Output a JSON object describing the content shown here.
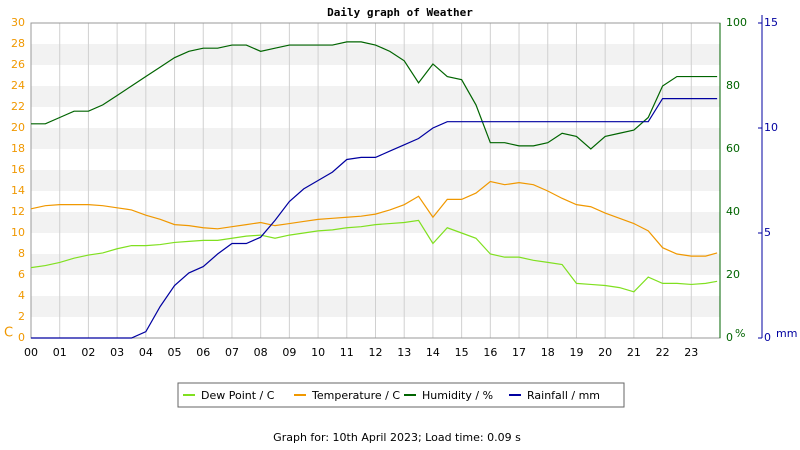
{
  "chart_data": {
    "type": "line",
    "title": "Daily graph of Weather",
    "note": "Graph for: 10th April 2023; Load time: 0.09 s",
    "y_label": "C",
    "y2_label": "%",
    "y3_label": "mm",
    "xlim": [
      0,
      24
    ],
    "xticks": [
      {
        "value": 0,
        "label": "00"
      },
      {
        "value": 1,
        "label": "01"
      },
      {
        "value": 2,
        "label": "02"
      },
      {
        "value": 3,
        "label": "03"
      },
      {
        "value": 4,
        "label": "04"
      },
      {
        "value": 5,
        "label": "05"
      },
      {
        "value": 6,
        "label": "06"
      },
      {
        "value": 7,
        "label": "07"
      },
      {
        "value": 8,
        "label": "08"
      },
      {
        "value": 9,
        "label": "09"
      },
      10,
      11,
      12,
      13,
      14,
      15,
      16,
      17,
      18,
      19,
      20,
      21,
      22,
      23
    ],
    "ylim": [
      0,
      30
    ],
    "yticks": [
      0,
      2,
      4,
      6,
      8,
      10,
      12,
      14,
      16,
      18,
      20,
      22,
      24,
      26,
      28,
      30
    ],
    "y2lim": [
      0,
      100
    ],
    "y2ticks": [
      0,
      20,
      40,
      60,
      80,
      100
    ],
    "y3lim": [
      0,
      15
    ],
    "y3ticks": [
      0,
      5,
      10,
      15
    ],
    "grid": true,
    "x": [
      0,
      0.5,
      1,
      1.5,
      2,
      2.5,
      3,
      3.5,
      4,
      4.5,
      5,
      5.5,
      6,
      6.5,
      7,
      7.5,
      8,
      8.5,
      9,
      9.5,
      10,
      10.5,
      11,
      11.5,
      12,
      12.5,
      13,
      13.5,
      14,
      14.5,
      15,
      15.5,
      16,
      16.5,
      17,
      17.5,
      18,
      18.5,
      19,
      19.5,
      20,
      20.5,
      21,
      21.5,
      22,
      22.5,
      23,
      23.5,
      23.9
    ],
    "series": [
      {
        "name": "Dew Point / C",
        "color": "#80e020",
        "values": [
          6.7,
          6.9,
          7.2,
          7.6,
          7.9,
          8.1,
          8.5,
          8.8,
          8.8,
          8.9,
          9.1,
          9.2,
          9.3,
          9.3,
          9.5,
          9.7,
          9.8,
          9.5,
          9.8,
          10.0,
          10.2,
          10.3,
          10.5,
          10.6,
          10.8,
          10.9,
          11.0,
          11.2,
          9.0,
          10.5,
          10.0,
          9.5,
          8.0,
          7.7,
          7.7,
          7.4,
          7.2,
          7.0,
          5.2,
          5.1,
          5.0,
          4.8,
          4.4,
          5.8,
          5.2,
          5.2,
          5.1,
          5.2,
          5.4
        ]
      },
      {
        "name": "Temperature / C",
        "color": "#f09800",
        "values": [
          12.3,
          12.6,
          12.7,
          12.7,
          12.7,
          12.6,
          12.4,
          12.2,
          11.7,
          11.3,
          10.8,
          10.7,
          10.5,
          10.4,
          10.6,
          10.8,
          11.0,
          10.7,
          10.9,
          11.1,
          11.3,
          11.4,
          11.5,
          11.6,
          11.8,
          12.2,
          12.7,
          13.5,
          11.5,
          13.2,
          13.2,
          13.8,
          14.9,
          14.6,
          14.8,
          14.6,
          14.0,
          13.3,
          12.7,
          12.5,
          11.9,
          11.4,
          10.9,
          10.2,
          8.6,
          8.0,
          7.8,
          7.8,
          8.1
        ]
      },
      {
        "name": "Humidity / %",
        "color": "#006400",
        "axis": "y2",
        "values": [
          68,
          68,
          70,
          72,
          72,
          74,
          77,
          80,
          83,
          86,
          89,
          91,
          92,
          92,
          93,
          93,
          91,
          92,
          93,
          93,
          93,
          93,
          94,
          94,
          93,
          91,
          88,
          81,
          87,
          83,
          82,
          74,
          62,
          62,
          61,
          61,
          62,
          65,
          64,
          60,
          64,
          65,
          66,
          70,
          80,
          83,
          83,
          83,
          83
        ]
      },
      {
        "name": "Rainfall / mm",
        "color": "#0000a0",
        "axis": "y3",
        "values": [
          0,
          0,
          0,
          0,
          0,
          0,
          0,
          0,
          0.3,
          1.5,
          2.5,
          3.1,
          3.4,
          4.0,
          4.5,
          4.5,
          4.8,
          5.6,
          6.5,
          7.1,
          7.5,
          7.9,
          8.5,
          8.6,
          8.6,
          8.9,
          9.2,
          9.5,
          10.0,
          10.3,
          10.3,
          10.3,
          10.3,
          10.3,
          10.3,
          10.3,
          10.3,
          10.3,
          10.3,
          10.3,
          10.3,
          10.3,
          10.3,
          10.3,
          11.4,
          11.4,
          11.4,
          11.4,
          11.4
        ]
      }
    ]
  }
}
